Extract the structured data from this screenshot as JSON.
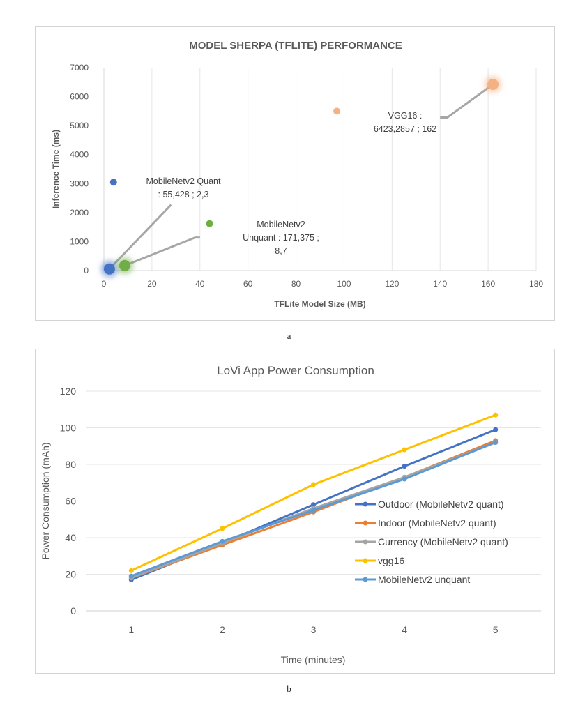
{
  "captions": {
    "a": "a",
    "b": "b"
  },
  "chart_data": [
    {
      "id": "a",
      "type": "scatter",
      "title": "MODEL SHERPA (TFLITE) PERFORMANCE",
      "xlabel": "TFLite Model Size (MB)",
      "ylabel": "Inference Time (ms)",
      "xlim": [
        0,
        180
      ],
      "ylim": [
        0,
        7000
      ],
      "xticks": [
        0,
        20,
        40,
        60,
        80,
        100,
        120,
        140,
        160,
        180
      ],
      "yticks": [
        0,
        1000,
        2000,
        3000,
        4000,
        5000,
        6000,
        7000
      ],
      "grid": "vertical",
      "legend": "none",
      "points": [
        {
          "x": 4,
          "y": 3050,
          "color": "#4472c4",
          "size": "small"
        },
        {
          "x": 44,
          "y": 1620,
          "color": "#70ad47",
          "size": "small"
        },
        {
          "x": 97,
          "y": 5500,
          "color": "#f4b183",
          "size": "small"
        },
        {
          "x": 2.3,
          "y": 55,
          "color": "#4472c4",
          "size": "large"
        },
        {
          "x": 8.7,
          "y": 171,
          "color": "#70ad47",
          "size": "large"
        },
        {
          "x": 162,
          "y": 6423,
          "color": "#f4b183",
          "size": "large"
        }
      ],
      "annotations": [
        {
          "lines": [
            "MobileNetv2 Quant",
            ": 55,428 ; 2,3"
          ],
          "point_index": 3,
          "leader_x": [
            2.3,
            28
          ],
          "leader_y": [
            55,
            2270
          ]
        },
        {
          "lines": [
            "MobileNetv2",
            "Unquant : 171,375 ;",
            "8,7"
          ],
          "point_index": 4,
          "leader_x": [
            8.7,
            38,
            40
          ],
          "leader_y": [
            171,
            1140,
            1140
          ]
        },
        {
          "lines": [
            "VGG16 :",
            "6423,2857 ; 162"
          ],
          "point_index": 5,
          "leader_x": [
            162,
            143,
            140
          ],
          "leader_y": [
            6423,
            5280,
            5280
          ]
        }
      ],
      "colors": {
        "quant": "#4472c4",
        "unquant": "#70ad47",
        "vgg16": "#f4b183",
        "leader": "#a6a6a6"
      }
    },
    {
      "id": "b",
      "type": "line",
      "title": "LoVi App Power Consumption",
      "xlabel": "Time (minutes)",
      "ylabel": "Power Consumption (mAh)",
      "categories": [
        "1",
        "2",
        "3",
        "4",
        "5"
      ],
      "ylim": [
        0,
        120
      ],
      "yticks": [
        0,
        20,
        40,
        60,
        80,
        100,
        120
      ],
      "grid": "horizontal",
      "legend": "right",
      "series": [
        {
          "name": "Outdoor (MobileNetv2 quant)",
          "color": "#4472c4",
          "values": [
            17,
            37,
            58,
            79,
            99
          ]
        },
        {
          "name": "Indoor (MobileNetv2 quant)",
          "color": "#ed7d31",
          "values": [
            18,
            36,
            54,
            73,
            93
          ]
        },
        {
          "name": "Currency (MobileNetv2 quant)",
          "color": "#a5a5a5",
          "values": [
            18,
            37,
            56,
            73,
            92
          ]
        },
        {
          "name": "vgg16",
          "color": "#ffc000",
          "values": [
            22,
            45,
            69,
            88,
            107
          ]
        },
        {
          "name": "MobileNetv2 unquant",
          "color": "#5b9bd5",
          "values": [
            19,
            38,
            55,
            72,
            92
          ]
        }
      ]
    }
  ]
}
